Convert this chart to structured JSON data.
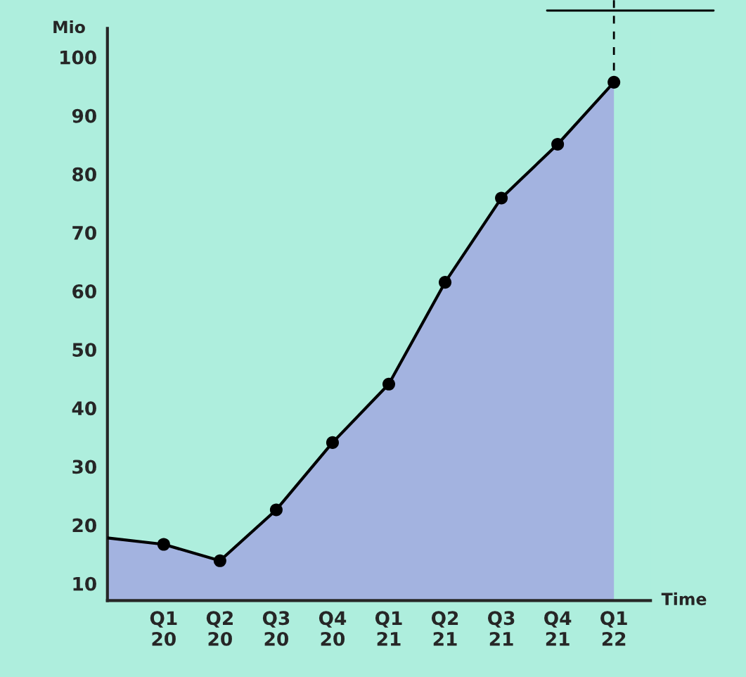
{
  "chart_data": {
    "type": "area",
    "xlabel": "Time",
    "ylabel": "Mio",
    "categories": [
      null,
      "Q1\n20",
      "Q2\n20",
      "Q3\n20",
      "Q4\n20",
      "Q1\n21",
      "Q2\n21",
      "Q3\n21",
      "Q4\n21",
      "Q1\n22"
    ],
    "series": [
      {
        "color": "#a3b3e0",
        "values": [
          17.8,
          16.7,
          13.9,
          22.6,
          34.1,
          44.1,
          61.5,
          75.9,
          85.1,
          95.7
        ]
      }
    ],
    "ylim": [
      7.1,
      104.9
    ],
    "yticks": [
      10,
      20,
      30,
      40,
      50,
      60,
      70,
      80,
      90,
      100
    ],
    "marker": "circle",
    "grid": false,
    "legend": false
  }
}
